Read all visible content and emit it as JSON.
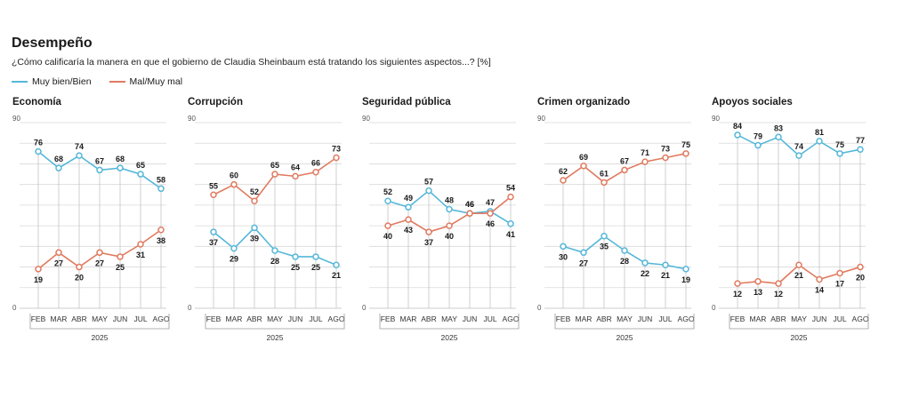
{
  "title": "Desempeño",
  "subtitle": "¿Cómo calificaría la manera en que el gobierno de Claudia Sheinbaum está tratando los siguientes aspectos...? [%]",
  "legend": {
    "blue_label": "Muy bien/Bien",
    "orange_label": "Mal/Muy mal"
  },
  "colors": {
    "blue": "#56b7d9",
    "orange": "#e07a5f",
    "grid": "#d9d9d9",
    "vline": "#c4c4c4"
  },
  "chart_data": [
    {
      "type": "line",
      "title": "Economía",
      "categories": [
        "FEB",
        "MAR",
        "ABR",
        "MAY",
        "JUN",
        "JUL",
        "AGO"
      ],
      "xlabel": "2025",
      "ylim": [
        0,
        90
      ],
      "ytick_labels": [
        "90",
        "0"
      ],
      "grid": true,
      "series": [
        {
          "name": "Muy bien/Bien",
          "values": [
            76,
            68,
            74,
            67,
            68,
            65,
            58
          ]
        },
        {
          "name": "Mal/Muy mal",
          "values": [
            19,
            27,
            20,
            27,
            25,
            31,
            38
          ]
        }
      ]
    },
    {
      "type": "line",
      "title": "Corrupción",
      "categories": [
        "FEB",
        "MAR",
        "ABR",
        "MAY",
        "JUN",
        "JUL",
        "AGO"
      ],
      "xlabel": "2025",
      "ylim": [
        0,
        90
      ],
      "ytick_labels": [
        "90",
        "0"
      ],
      "grid": true,
      "series": [
        {
          "name": "Muy bien/Bien",
          "values": [
            37,
            29,
            39,
            28,
            25,
            25,
            21
          ]
        },
        {
          "name": "Mal/Muy mal",
          "values": [
            55,
            60,
            52,
            65,
            64,
            66,
            73
          ]
        }
      ]
    },
    {
      "type": "line",
      "title": "Seguridad pública",
      "categories": [
        "FEB",
        "MAR",
        "ABR",
        "MAY",
        "JUN",
        "JUL",
        "AGO"
      ],
      "xlabel": "2025",
      "ylim": [
        0,
        90
      ],
      "ytick_labels": [
        "90",
        "0"
      ],
      "grid": true,
      "series": [
        {
          "name": "Muy bien/Bien",
          "values": [
            52,
            49,
            57,
            48,
            46,
            47,
            41
          ]
        },
        {
          "name": "Mal/Muy mal",
          "values": [
            40,
            43,
            37,
            40,
            46,
            46,
            54
          ]
        }
      ]
    },
    {
      "type": "line",
      "title": "Crimen organizado",
      "categories": [
        "FEB",
        "MAR",
        "ABR",
        "MAY",
        "JUN",
        "JUL",
        "AGO"
      ],
      "xlabel": "2025",
      "ylim": [
        0,
        90
      ],
      "ytick_labels": [
        "90",
        "0"
      ],
      "grid": true,
      "series": [
        {
          "name": "Muy bien/Bien",
          "values": [
            30,
            27,
            35,
            28,
            22,
            21,
            19
          ]
        },
        {
          "name": "Mal/Muy mal",
          "values": [
            62,
            69,
            61,
            67,
            71,
            73,
            75
          ]
        }
      ]
    },
    {
      "type": "line",
      "title": "Apoyos sociales",
      "categories": [
        "FEB",
        "MAR",
        "ABR",
        "MAY",
        "JUN",
        "JUL",
        "AGO"
      ],
      "xlabel": "2025",
      "ylim": [
        0,
        90
      ],
      "ytick_labels": [
        "90",
        "0"
      ],
      "grid": true,
      "series": [
        {
          "name": "Muy bien/Bien",
          "values": [
            84,
            79,
            83,
            74,
            81,
            75,
            77
          ]
        },
        {
          "name": "Mal/Muy mal",
          "values": [
            12,
            13,
            12,
            21,
            14,
            17,
            20
          ]
        }
      ]
    }
  ]
}
